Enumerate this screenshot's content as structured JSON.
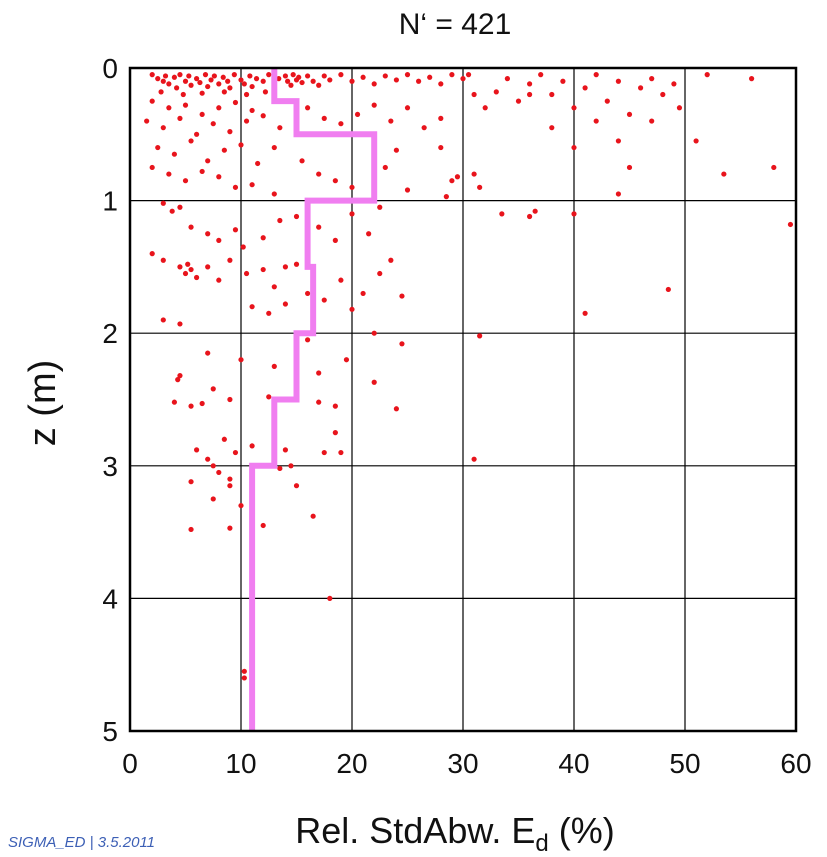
{
  "chart_data": {
    "type": "scatter",
    "title": "N‘ = 421",
    "ylabel": "z (m)",
    "xlabel": "Rel. StdAbw. E",
    "xlabel_sub": "d",
    "xlabel_suffix": " (%)",
    "xlim": [
      0,
      60
    ],
    "ylim": [
      0,
      5
    ],
    "y_inverted": true,
    "x_ticks": [
      0,
      10,
      20,
      30,
      40,
      50,
      60
    ],
    "y_ticks": [
      0,
      1,
      2,
      3,
      4,
      5
    ],
    "grid": true,
    "colors": {
      "points": "#e8141c",
      "line": "#f07ef0",
      "grid": "#000000"
    },
    "series": [
      {
        "kind": "points",
        "points": [
          [
            2,
            0.05
          ],
          [
            2.5,
            0.08
          ],
          [
            3,
            0.1
          ],
          [
            3.2,
            0.06
          ],
          [
            3.5,
            0.12
          ],
          [
            4,
            0.07
          ],
          [
            4.2,
            0.15
          ],
          [
            4.5,
            0.05
          ],
          [
            5,
            0.1
          ],
          [
            5.3,
            0.06
          ],
          [
            5.5,
            0.13
          ],
          [
            6,
            0.08
          ],
          [
            6.3,
            0.11
          ],
          [
            6.8,
            0.05
          ],
          [
            7,
            0.14
          ],
          [
            7.3,
            0.09
          ],
          [
            7.6,
            0.06
          ],
          [
            8,
            0.12
          ],
          [
            8.4,
            0.07
          ],
          [
            8.8,
            0.1
          ],
          [
            9,
            0.15
          ],
          [
            9.4,
            0.05
          ],
          [
            10,
            0.09
          ],
          [
            10.3,
            0.12
          ],
          [
            10.8,
            0.06
          ],
          [
            11,
            0.14
          ],
          [
            11.4,
            0.08
          ],
          [
            12,
            0.1
          ],
          [
            12.5,
            0.05
          ],
          [
            13,
            0.12
          ],
          [
            13.4,
            0.08
          ],
          [
            14,
            0.06
          ],
          [
            14.2,
            0.1
          ],
          [
            14.5,
            0.13
          ],
          [
            14.7,
            0.05
          ],
          [
            15,
            0.09
          ],
          [
            15.2,
            0.07
          ],
          [
            15.5,
            0.11
          ],
          [
            16,
            0.06
          ],
          [
            16.5,
            0.1
          ],
          [
            17,
            0.13
          ],
          [
            17.5,
            0.06
          ],
          [
            18,
            0.09
          ],
          [
            19,
            0.05
          ],
          [
            20,
            0.1
          ],
          [
            21,
            0.07
          ],
          [
            22,
            0.12
          ],
          [
            23,
            0.06
          ],
          [
            24,
            0.09
          ],
          [
            25,
            0.05
          ],
          [
            26,
            0.1
          ],
          [
            27,
            0.07
          ],
          [
            28,
            0.12
          ],
          [
            29,
            0.05
          ],
          [
            30,
            0.08
          ],
          [
            2.8,
            0.18
          ],
          [
            4.8,
            0.2
          ],
          [
            6.5,
            0.19
          ],
          [
            8.5,
            0.18
          ],
          [
            10.5,
            0.2
          ],
          [
            12.2,
            0.18
          ],
          [
            2,
            0.25
          ],
          [
            3.5,
            0.3
          ],
          [
            5,
            0.28
          ],
          [
            6.5,
            0.35
          ],
          [
            8,
            0.3
          ],
          [
            9.5,
            0.26
          ],
          [
            11,
            0.32
          ],
          [
            1.5,
            0.4
          ],
          [
            3,
            0.45
          ],
          [
            4.5,
            0.38
          ],
          [
            6,
            0.5
          ],
          [
            7.5,
            0.42
          ],
          [
            9,
            0.48
          ],
          [
            10.5,
            0.4
          ],
          [
            12,
            0.36
          ],
          [
            13.5,
            0.45
          ],
          [
            16,
            0.3
          ],
          [
            17.5,
            0.38
          ],
          [
            19,
            0.42
          ],
          [
            20.5,
            0.35
          ],
          [
            22,
            0.28
          ],
          [
            23.5,
            0.4
          ],
          [
            25,
            0.3
          ],
          [
            26.5,
            0.45
          ],
          [
            28,
            0.38
          ],
          [
            2.5,
            0.6
          ],
          [
            4,
            0.65
          ],
          [
            5.5,
            0.55
          ],
          [
            7,
            0.7
          ],
          [
            8.5,
            0.62
          ],
          [
            10,
            0.58
          ],
          [
            11.5,
            0.72
          ],
          [
            13,
            0.6
          ],
          [
            2,
            0.75
          ],
          [
            3.5,
            0.8
          ],
          [
            5,
            0.85
          ],
          [
            6.5,
            0.78
          ],
          [
            8,
            0.82
          ],
          [
            9.5,
            0.9
          ],
          [
            11,
            0.88
          ],
          [
            13,
            0.95
          ],
          [
            15.5,
            0.7
          ],
          [
            17,
            0.8
          ],
          [
            18.5,
            0.85
          ],
          [
            20,
            0.9
          ],
          [
            23,
            0.75
          ],
          [
            24,
            0.62
          ],
          [
            25,
            0.92
          ],
          [
            28,
            0.6
          ],
          [
            29,
            0.85
          ],
          [
            29.5,
            0.82
          ],
          [
            31,
            0.8
          ],
          [
            31.5,
            0.9
          ],
          [
            28.5,
            0.97
          ],
          [
            3,
            1.02
          ],
          [
            3.8,
            1.08
          ],
          [
            4.5,
            1.05
          ],
          [
            5.5,
            1.2
          ],
          [
            7,
            1.25
          ],
          [
            8,
            1.3
          ],
          [
            9.5,
            1.22
          ],
          [
            10.2,
            1.35
          ],
          [
            12,
            1.28
          ],
          [
            13.5,
            1.15
          ],
          [
            15,
            1.12
          ],
          [
            17,
            1.2
          ],
          [
            18.5,
            1.3
          ],
          [
            20,
            1.1
          ],
          [
            21.5,
            1.25
          ],
          [
            22.5,
            1.05
          ],
          [
            2,
            1.4
          ],
          [
            3,
            1.45
          ],
          [
            4.5,
            1.5
          ],
          [
            5,
            1.55
          ],
          [
            5.2,
            1.48
          ],
          [
            5.5,
            1.52
          ],
          [
            6,
            1.58
          ],
          [
            7,
            1.5
          ],
          [
            8,
            1.6
          ],
          [
            9,
            1.45
          ],
          [
            10.5,
            1.55
          ],
          [
            12,
            1.52
          ],
          [
            13,
            1.65
          ],
          [
            14,
            1.5
          ],
          [
            15,
            1.48
          ],
          [
            16,
            1.7
          ],
          [
            17.5,
            1.75
          ],
          [
            19,
            1.6
          ],
          [
            21,
            1.7
          ],
          [
            22.5,
            1.55
          ],
          [
            23.5,
            1.45
          ],
          [
            11,
            1.8
          ],
          [
            12.5,
            1.85
          ],
          [
            14,
            1.78
          ],
          [
            16.5,
            1.9
          ],
          [
            20,
            1.82
          ],
          [
            24.5,
            1.72
          ],
          [
            3,
            1.9
          ],
          [
            4.5,
            1.93
          ],
          [
            16,
            2.05
          ],
          [
            22,
            2.0
          ],
          [
            24.5,
            2.08
          ],
          [
            7,
            2.15
          ],
          [
            10,
            2.2
          ],
          [
            13,
            2.25
          ],
          [
            17,
            2.3
          ],
          [
            19.5,
            2.2
          ],
          [
            4.5,
            2.32
          ],
          [
            4.3,
            2.35
          ],
          [
            22,
            2.37
          ],
          [
            7.5,
            2.42
          ],
          [
            9,
            2.5
          ],
          [
            12.5,
            2.48
          ],
          [
            17,
            2.52
          ],
          [
            18.5,
            2.55
          ],
          [
            4,
            2.52
          ],
          [
            5.5,
            2.55
          ],
          [
            6.5,
            2.53
          ],
          [
            24,
            2.57
          ],
          [
            13,
            2.62
          ],
          [
            18.5,
            2.75
          ],
          [
            8.5,
            2.8
          ],
          [
            11,
            2.85
          ],
          [
            14,
            2.88
          ],
          [
            6,
            2.88
          ],
          [
            7,
            2.95
          ],
          [
            9.5,
            2.9
          ],
          [
            17.5,
            2.9
          ],
          [
            19,
            2.9
          ],
          [
            7.5,
            3.0
          ],
          [
            8,
            3.05
          ],
          [
            9,
            3.1
          ],
          [
            11,
            3.08
          ],
          [
            13.5,
            3.02
          ],
          [
            14.5,
            3.0
          ],
          [
            5.5,
            3.12
          ],
          [
            9,
            3.15
          ],
          [
            15,
            3.15
          ],
          [
            7.5,
            3.25
          ],
          [
            10,
            3.3
          ],
          [
            16.5,
            3.38
          ],
          [
            12,
            3.45
          ],
          [
            5.5,
            3.48
          ],
          [
            9,
            3.47
          ],
          [
            18,
            4.0
          ],
          [
            10.3,
            4.55
          ],
          [
            10.3,
            4.6
          ],
          [
            31.5,
            2.02
          ],
          [
            31,
            2.95
          ],
          [
            30.5,
            0.05
          ],
          [
            31,
            0.2
          ],
          [
            32,
            0.3
          ],
          [
            33,
            0.18
          ],
          [
            34,
            0.08
          ],
          [
            35,
            0.25
          ],
          [
            36,
            0.12
          ],
          [
            37,
            0.05
          ],
          [
            38,
            0.2
          ],
          [
            39,
            0.1
          ],
          [
            40,
            0.3
          ],
          [
            41,
            0.15
          ],
          [
            42,
            0.05
          ],
          [
            43,
            0.25
          ],
          [
            44,
            0.1
          ],
          [
            45,
            0.35
          ],
          [
            46,
            0.15
          ],
          [
            47,
            0.08
          ],
          [
            49,
            0.12
          ],
          [
            52,
            0.05
          ],
          [
            56,
            0.08
          ],
          [
            36,
            0.2
          ],
          [
            38,
            0.45
          ],
          [
            40,
            0.6
          ],
          [
            42,
            0.4
          ],
          [
            44,
            0.55
          ],
          [
            45,
            0.75
          ],
          [
            47,
            0.4
          ],
          [
            48,
            0.2
          ],
          [
            49.5,
            0.3
          ],
          [
            51,
            0.55
          ],
          [
            53.5,
            0.8
          ],
          [
            58,
            0.75
          ],
          [
            33.5,
            1.1
          ],
          [
            36,
            1.12
          ],
          [
            36.5,
            1.08
          ],
          [
            40,
            1.1
          ],
          [
            44,
            0.95
          ],
          [
            59.5,
            1.18
          ],
          [
            41,
            1.85
          ],
          [
            48.5,
            1.67
          ]
        ]
      },
      {
        "kind": "step",
        "steps": [
          {
            "x": 13,
            "z0": 0.0,
            "z1": 0.25
          },
          {
            "x": 15,
            "z0": 0.25,
            "z1": 0.5
          },
          {
            "x": 22,
            "z0": 0.5,
            "z1": 1.0
          },
          {
            "x": 16,
            "z0": 1.0,
            "z1": 1.5
          },
          {
            "x": 16.5,
            "z0": 1.5,
            "z1": 2.0
          },
          {
            "x": 15,
            "z0": 2.0,
            "z1": 2.5
          },
          {
            "x": 13,
            "z0": 2.5,
            "z1": 3.0
          },
          {
            "x": 11,
            "z0": 3.0,
            "z1": 5.0
          }
        ]
      }
    ]
  },
  "footer": "SIGMA_ED | 3.5.2011"
}
